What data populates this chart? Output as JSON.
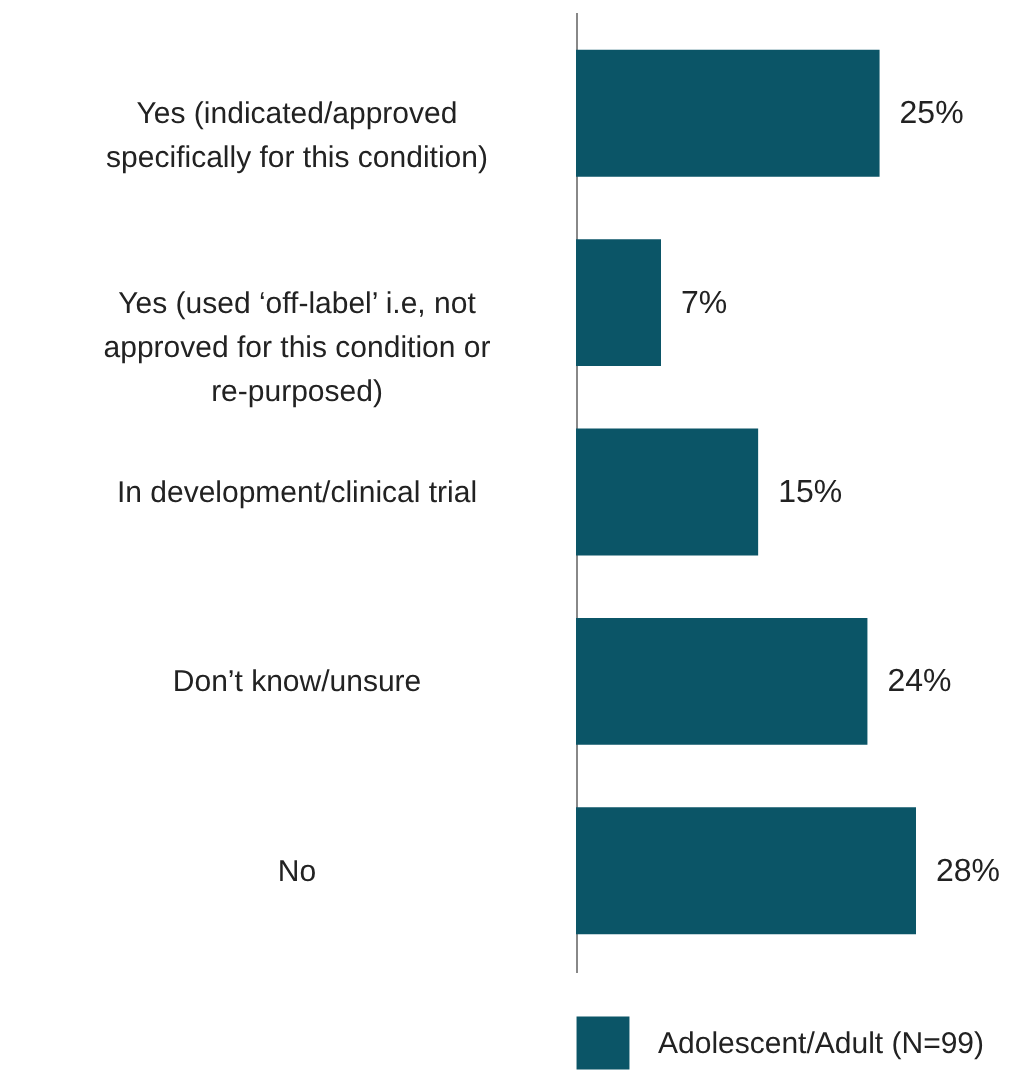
{
  "chart_data": {
    "type": "bar",
    "orientation": "horizontal",
    "categories": [
      "Yes (indicated/approved specifically for this condition)",
      "Yes (used ‘off-label’ i.e, not approved for this condition or re-purposed)",
      "In development/clinical trial",
      "Don’t know/unsure",
      "No"
    ],
    "series": [
      {
        "name": "Adolescent/Adult (N=99)",
        "color": "#0b5567",
        "values": [
          25,
          7,
          15,
          24,
          28
        ],
        "value_labels": [
          "25%",
          "7%",
          "15%",
          "24%",
          "28%"
        ]
      }
    ],
    "legend": "bottom"
  }
}
